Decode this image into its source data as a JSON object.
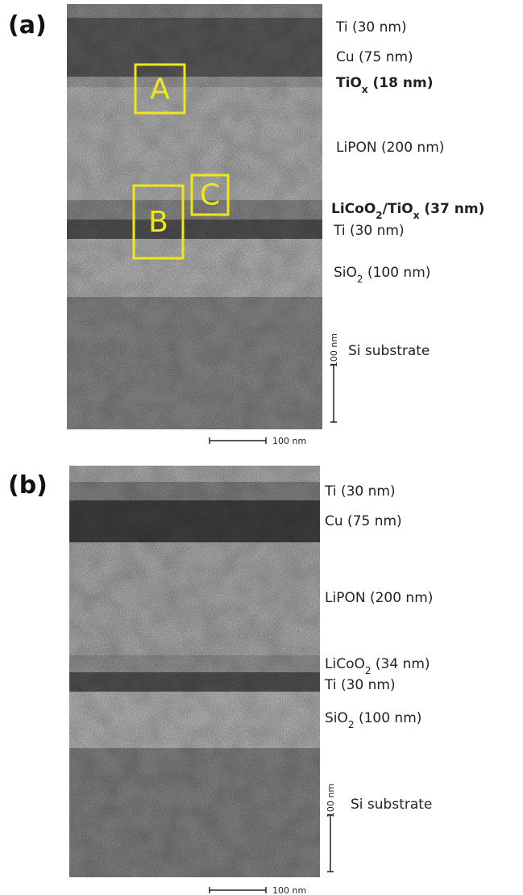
{
  "panels": [
    {
      "label": "(a)",
      "layers": [
        {
          "text": [
            "Ti (30 nm)"
          ]
        },
        {
          "text": [
            "Cu (75 nm)"
          ]
        },
        {
          "text": [
            "TiO",
            "x",
            " (18 nm)"
          ]
        },
        {
          "text": [
            "LiPON (200 nm)"
          ]
        },
        {
          "text": [
            "LiCoO",
            "2",
            "/TiO",
            "x",
            " (37 nm)"
          ]
        },
        {
          "text": [
            "Ti (30 nm)"
          ]
        },
        {
          "text": [
            "SiO",
            "2",
            " (100 nm)"
          ]
        },
        {
          "text": [
            "Si substrate"
          ]
        }
      ],
      "regions": [
        "A",
        "B",
        "C"
      ],
      "scale_vertical": "100 nm",
      "scale_horizontal": "100 nm"
    },
    {
      "label": "(b)",
      "layers": [
        {
          "text": [
            "Ti (30 nm)"
          ]
        },
        {
          "text": [
            "Cu (75 nm)"
          ]
        },
        {
          "text": [
            "LiPON (200 nm)"
          ]
        },
        {
          "text": [
            "LiCoO",
            "2",
            " (34 nm)"
          ]
        },
        {
          "text": [
            "Ti (30 nm)"
          ]
        },
        {
          "text": [
            "SiO",
            "2",
            " (100 nm)"
          ]
        },
        {
          "text": [
            "Si substrate"
          ]
        }
      ],
      "scale_vertical": "100 nm",
      "scale_horizontal": "100 nm"
    }
  ]
}
